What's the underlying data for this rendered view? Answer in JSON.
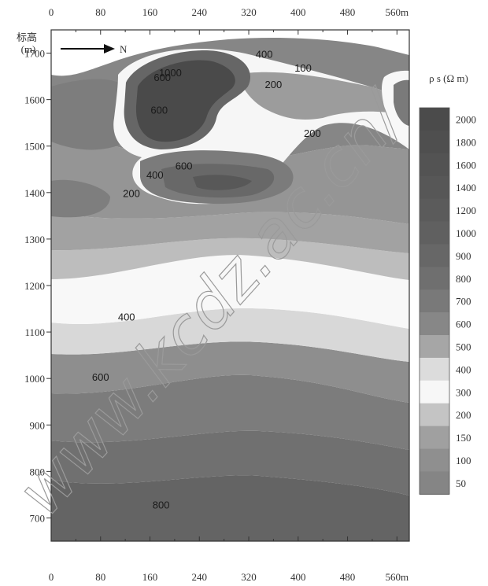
{
  "chart_data": {
    "type": "heatmap",
    "title": "",
    "xlabel": "",
    "x_unit": "m",
    "ylabel": "标高",
    "y_unit": "(m)",
    "x_ticks": [
      0,
      80,
      160,
      240,
      320,
      400,
      480,
      560
    ],
    "x_tick_labels": [
      "0",
      "80",
      "160",
      "240",
      "320",
      "400",
      "480",
      "560m"
    ],
    "y_ticks": [
      700,
      800,
      900,
      1000,
      1100,
      1200,
      1300,
      1400,
      1500,
      1600,
      1700
    ],
    "xlim": [
      0,
      580
    ],
    "ylim": [
      650,
      1750
    ],
    "direction_label": "N",
    "colorbar": {
      "title": "ρ s (Ω m)",
      "levels": [
        "2000",
        "1800",
        "1600",
        "1400",
        "1200",
        "1000",
        "900",
        "800",
        "700",
        "600",
        "500",
        "400",
        "300",
        "200",
        "150",
        "100",
        "50"
      ],
      "colors": [
        "#4b4b4b",
        "#4f4f4f",
        "#535353",
        "#575757",
        "#5b5b5b",
        "#606060",
        "#676767",
        "#6f6f6f",
        "#797979",
        "#878787",
        "#a6a6a6",
        "#dcdcdc",
        "#f7f7f7",
        "#c4c4c4",
        "#a0a0a0",
        "#8f8f8f",
        "#858585"
      ]
    },
    "contour_labels": [
      {
        "text": "600",
        "x": 180,
        "y": 1640
      },
      {
        "text": "1000",
        "x": 193,
        "y": 1650
      },
      {
        "text": "400",
        "x": 345,
        "y": 1690
      },
      {
        "text": "100",
        "x": 408,
        "y": 1660
      },
      {
        "text": "200",
        "x": 360,
        "y": 1625
      },
      {
        "text": "600",
        "x": 175,
        "y": 1570
      },
      {
        "text": "200",
        "x": 423,
        "y": 1520
      },
      {
        "text": "600",
        "x": 215,
        "y": 1450
      },
      {
        "text": "400",
        "x": 168,
        "y": 1430
      },
      {
        "text": "200",
        "x": 130,
        "y": 1390
      },
      {
        "text": "400",
        "x": 122,
        "y": 1125
      },
      {
        "text": "600",
        "x": 80,
        "y": 995
      },
      {
        "text": "800",
        "x": 178,
        "y": 720
      }
    ]
  },
  "watermark": "www.kcdz.ac.cn/"
}
